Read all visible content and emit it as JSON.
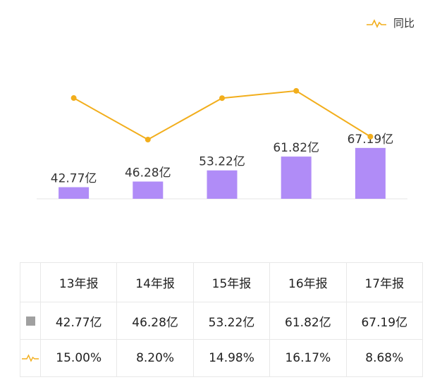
{
  "colors": {
    "bar": "#B08CF7",
    "line": "#F2AE1C",
    "swatch": "#A0A0A0",
    "axis": "#E5E5E5"
  },
  "legend": {
    "line_label": "同比",
    "icon": "line-series-icon"
  },
  "chart_data": {
    "type": "bar",
    "categories": [
      "13年报",
      "14年报",
      "15年报",
      "16年报",
      "17年报"
    ],
    "series": [
      {
        "type": "bar",
        "values": [
          42.77,
          46.28,
          53.22,
          61.82,
          67.19
        ],
        "labels": [
          "42.77亿",
          "46.28亿",
          "53.22亿",
          "61.82亿",
          "67.19亿"
        ]
      },
      {
        "type": "line",
        "name": "同比",
        "values": [
          15.0,
          8.2,
          14.98,
          16.17,
          8.68
        ]
      }
    ],
    "legend": "top-right",
    "grid": false
  },
  "table": {
    "headers": [
      "13年报",
      "14年报",
      "15年报",
      "16年报",
      "17年报"
    ],
    "rows": [
      {
        "icon": "gray-square-icon",
        "cells": [
          "42.77亿",
          "46.28亿",
          "53.22亿",
          "61.82亿",
          "67.19亿"
        ]
      },
      {
        "icon": "line-series-icon",
        "cells": [
          "15.00%",
          "8.20%",
          "14.98%",
          "16.17%",
          "8.68%"
        ]
      }
    ]
  }
}
